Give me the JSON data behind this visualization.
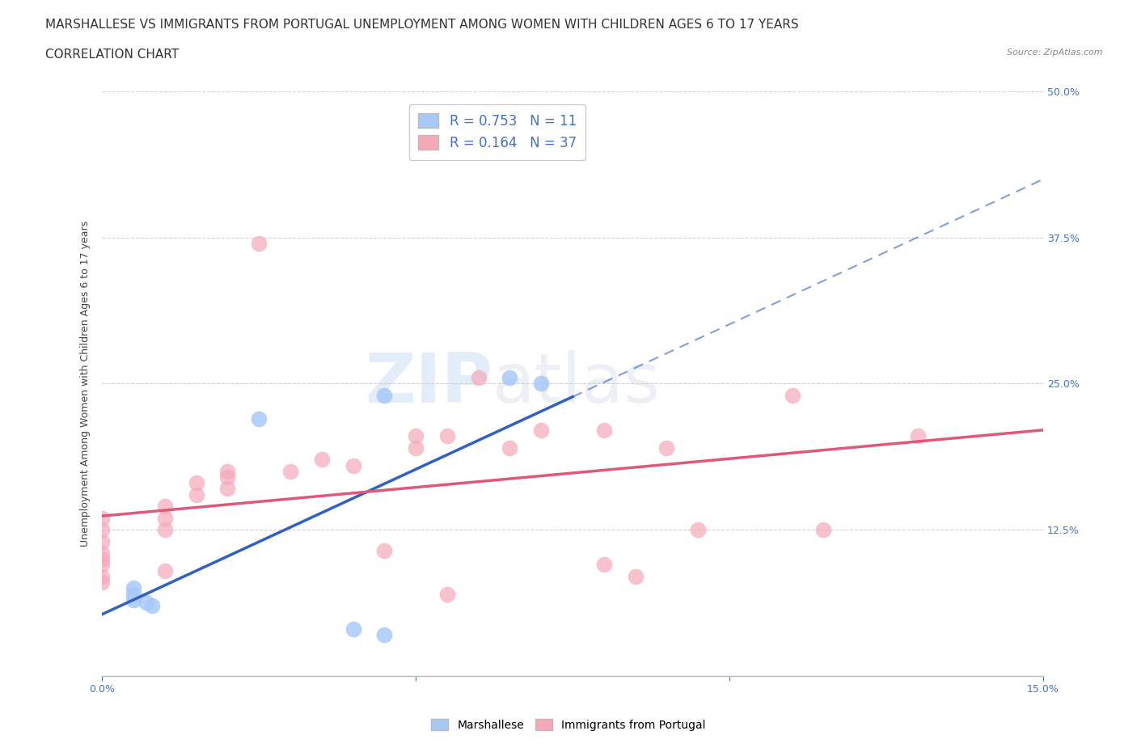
{
  "title_line1": "MARSHALLESE VS IMMIGRANTS FROM PORTUGAL UNEMPLOYMENT AMONG WOMEN WITH CHILDREN AGES 6 TO 17 YEARS",
  "title_line2": "CORRELATION CHART",
  "source": "Source: ZipAtlas.com",
  "ylabel": "Unemployment Among Women with Children Ages 6 to 17 years",
  "xlim": [
    0,
    0.15
  ],
  "ylim": [
    0,
    0.5
  ],
  "xticks": [
    0.0,
    0.05,
    0.1,
    0.15
  ],
  "xtick_labels": [
    "0.0%",
    "",
    "",
    "15.0%"
  ],
  "yticks": [
    0.0,
    0.125,
    0.25,
    0.375,
    0.5
  ],
  "ytick_labels": [
    "",
    "12.5%",
    "25.0%",
    "37.5%",
    "50.0%"
  ],
  "blue_color": "#a8c8f8",
  "pink_color": "#f5a8b8",
  "blue_line_color": "#3060c0",
  "pink_line_color": "#e05878",
  "blue_R": 0.753,
  "blue_N": 11,
  "pink_R": 0.164,
  "pink_N": 37,
  "watermark_zip": "ZIP",
  "watermark_atlas": "atlas",
  "blue_points": [
    [
      0.005,
      0.075
    ],
    [
      0.005,
      0.07
    ],
    [
      0.005,
      0.065
    ],
    [
      0.007,
      0.063
    ],
    [
      0.008,
      0.06
    ],
    [
      0.025,
      0.22
    ],
    [
      0.045,
      0.24
    ],
    [
      0.065,
      0.255
    ],
    [
      0.07,
      0.25
    ],
    [
      0.045,
      0.035
    ],
    [
      0.04,
      0.04
    ]
  ],
  "pink_points": [
    [
      0.0,
      0.085
    ],
    [
      0.0,
      0.095
    ],
    [
      0.0,
      0.1
    ],
    [
      0.0,
      0.105
    ],
    [
      0.0,
      0.115
    ],
    [
      0.0,
      0.125
    ],
    [
      0.0,
      0.135
    ],
    [
      0.0,
      0.08
    ],
    [
      0.01,
      0.09
    ],
    [
      0.01,
      0.125
    ],
    [
      0.01,
      0.135
    ],
    [
      0.01,
      0.145
    ],
    [
      0.015,
      0.155
    ],
    [
      0.015,
      0.165
    ],
    [
      0.02,
      0.16
    ],
    [
      0.02,
      0.17
    ],
    [
      0.02,
      0.175
    ],
    [
      0.025,
      0.37
    ],
    [
      0.03,
      0.175
    ],
    [
      0.035,
      0.185
    ],
    [
      0.04,
      0.18
    ],
    [
      0.05,
      0.195
    ],
    [
      0.05,
      0.205
    ],
    [
      0.055,
      0.205
    ],
    [
      0.06,
      0.255
    ],
    [
      0.065,
      0.195
    ],
    [
      0.07,
      0.21
    ],
    [
      0.08,
      0.21
    ],
    [
      0.08,
      0.095
    ],
    [
      0.085,
      0.085
    ],
    [
      0.09,
      0.195
    ],
    [
      0.095,
      0.125
    ],
    [
      0.11,
      0.24
    ],
    [
      0.115,
      0.125
    ],
    [
      0.13,
      0.205
    ],
    [
      0.045,
      0.107
    ],
    [
      0.055,
      0.07
    ]
  ],
  "background_color": "#ffffff",
  "grid_color": "#d0d0d0",
  "title_fontsize": 11,
  "axis_label_fontsize": 9,
  "tick_fontsize": 9,
  "legend_fontsize": 12
}
